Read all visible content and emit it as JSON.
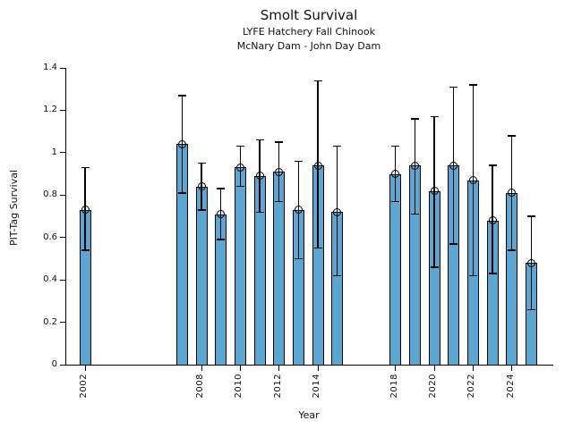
{
  "chart_data": {
    "type": "bar",
    "title": "Smolt Survival",
    "subtitle1": "LYFE Hatchery Fall Chinook",
    "subtitle2": "McNary Dam - John Day Dam",
    "xlabel": "Year",
    "ylabel": "PIT-Tag Survival",
    "ylim": [
      0,
      1.4
    ],
    "grid": false,
    "legend": null,
    "bar_color": "#5BA7D3",
    "bar_edge_color": "#000000",
    "error_bar_color": "#000000",
    "marker": "open-circle",
    "y_ticks": [
      0,
      0.2,
      0.4,
      0.6,
      0.8,
      1.0,
      1.2,
      1.4
    ],
    "y_tick_labels": [
      "0",
      "0.2",
      "0.4",
      "0.6",
      "0.8",
      "1",
      "1.2",
      "1.4"
    ],
    "x_tick_years": [
      2002,
      2008,
      2010,
      2012,
      2014,
      2018,
      2020,
      2022,
      2024
    ],
    "x_tick_labels": [
      "2002",
      "2008",
      "2010",
      "2012",
      "2014",
      "2018",
      "2020",
      "2022",
      "2024"
    ],
    "series": [
      {
        "year": 2002,
        "value": 0.73,
        "err_low": 0.54,
        "err_high": 0.93
      },
      {
        "year": 2007,
        "value": 1.04,
        "err_low": 0.81,
        "err_high": 1.27
      },
      {
        "year": 2008,
        "value": 0.84,
        "err_low": 0.73,
        "err_high": 0.95
      },
      {
        "year": 2009,
        "value": 0.71,
        "err_low": 0.59,
        "err_high": 0.83
      },
      {
        "year": 2010,
        "value": 0.93,
        "err_low": 0.84,
        "err_high": 1.03
      },
      {
        "year": 2011,
        "value": 0.89,
        "err_low": 0.72,
        "err_high": 1.06
      },
      {
        "year": 2012,
        "value": 0.91,
        "err_low": 0.77,
        "err_high": 1.05
      },
      {
        "year": 2013,
        "value": 0.73,
        "err_low": 0.5,
        "err_high": 0.96
      },
      {
        "year": 2014,
        "value": 0.94,
        "err_low": 0.55,
        "err_high": 1.34
      },
      {
        "year": 2015,
        "value": 0.72,
        "err_low": 0.42,
        "err_high": 1.03
      },
      {
        "year": 2018,
        "value": 0.9,
        "err_low": 0.77,
        "err_high": 1.03
      },
      {
        "year": 2019,
        "value": 0.94,
        "err_low": 0.71,
        "err_high": 1.16
      },
      {
        "year": 2020,
        "value": 0.82,
        "err_low": 0.46,
        "err_high": 1.17
      },
      {
        "year": 2021,
        "value": 0.94,
        "err_low": 0.57,
        "err_high": 1.31
      },
      {
        "year": 2022,
        "value": 0.87,
        "err_low": 0.42,
        "err_high": 1.32
      },
      {
        "year": 2023,
        "value": 0.68,
        "err_low": 0.43,
        "err_high": 0.94
      },
      {
        "year": 2024,
        "value": 0.81,
        "err_low": 0.54,
        "err_high": 1.08
      },
      {
        "year": 2025,
        "value": 0.48,
        "err_low": 0.26,
        "err_high": 0.7
      }
    ]
  }
}
